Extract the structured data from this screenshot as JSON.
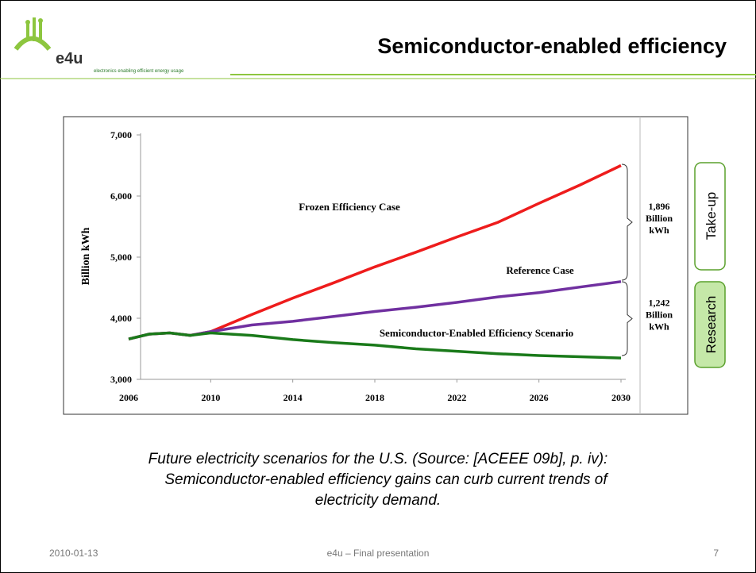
{
  "header": {
    "logo_text": "e4u",
    "logo_tagline": "electronics enabling efficient energy usage",
    "title": "Semiconductor-enabled efficiency"
  },
  "tabs": [
    "Take-up",
    "Research"
  ],
  "chart_data": {
    "type": "line",
    "y_label": "Billion kWh",
    "x": [
      2006,
      2007,
      2008,
      2009,
      2010,
      2012,
      2014,
      2016,
      2018,
      2020,
      2022,
      2024,
      2026,
      2028,
      2030
    ],
    "xlim": [
      2006,
      2030
    ],
    "xticks": [
      2006,
      2010,
      2014,
      2018,
      2022,
      2026,
      2030
    ],
    "ylim": [
      3000,
      7000
    ],
    "yticks": [
      {
        "value": 3000,
        "label": "3,000"
      },
      {
        "value": 4000,
        "label": "4,000"
      },
      {
        "value": 5000,
        "label": "5,000"
      },
      {
        "value": 6000,
        "label": "6,000"
      },
      {
        "value": 7000,
        "label": "7,000"
      }
    ],
    "series": [
      {
        "name": "Frozen Efficiency Case",
        "color": "#ee1c1c",
        "values": [
          3660,
          3740,
          3760,
          3720,
          3780,
          4060,
          4330,
          4580,
          4840,
          5080,
          5330,
          5570,
          5880,
          6180,
          6500
        ]
      },
      {
        "name": "Reference Case",
        "color": "#7030a0",
        "values": [
          3660,
          3740,
          3760,
          3720,
          3780,
          3890,
          3950,
          4030,
          4110,
          4180,
          4260,
          4350,
          4420,
          4510,
          4600
        ]
      },
      {
        "name": "Semiconductor-Enabled Efficiency Scenario",
        "color": "#1a7a1a",
        "values": [
          3660,
          3740,
          3760,
          3720,
          3760,
          3720,
          3650,
          3600,
          3560,
          3500,
          3460,
          3420,
          3390,
          3370,
          3350
        ]
      }
    ],
    "brace_labels": [
      [
        "1,896",
        "Billion",
        "kWh"
      ],
      [
        "1,242",
        "Billion",
        "kWh"
      ]
    ]
  },
  "caption": [
    "Future electricity scenarios for the U.S. (Source: [ACEEE 09b], p. iv):",
    "Semiconductor-enabled efficiency gains can curb current trends of",
    "electricity demand."
  ],
  "footer": {
    "date": "2010-01-13",
    "center": "e4u – Final presentation",
    "page": "7"
  }
}
